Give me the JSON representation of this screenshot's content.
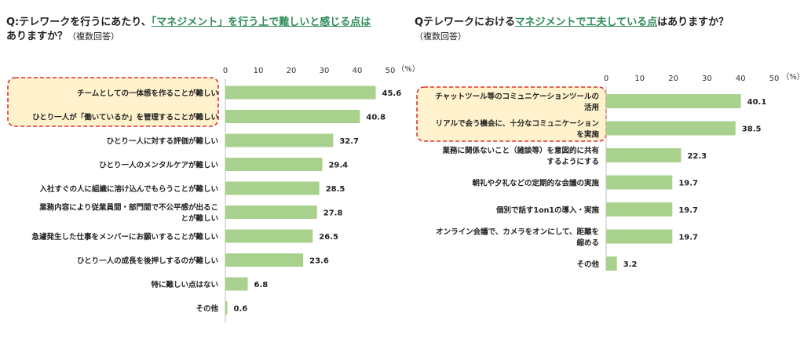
{
  "left_title": {
    "q": "Q:テレワークを行うにあたり、",
    "hl": "「マネジメント」を行う上で難しいと感じる点は",
    "line2": "ありますか？",
    "note": "（複数回答）"
  },
  "right_title": {
    "q": "Qテレワークにおける",
    "hl": "マネジメントで工夫している点",
    "rest": "はありますか？",
    "note": "（複数回答）"
  },
  "colors": {
    "bar": "#a9d18e",
    "highlight_bg": "#fff2cc",
    "highlight_border": "#e03030",
    "accent": "#2e8b57"
  },
  "chart_data": [
    {
      "type": "bar",
      "orientation": "horizontal",
      "unit": "（%）",
      "xlim": [
        0,
        50
      ],
      "ticks": [
        "0",
        "10",
        "20",
        "30",
        "40",
        "50"
      ],
      "categories": [
        "チームとしての一体感を作ることが難しい",
        "ひとり一人が「働いているか」を管理することが難しい",
        "ひとり一人に対する評価が難しい",
        "ひとり一人のメンタルケアが難しい",
        "入社すぐの人に組織に溶け込んでもらうことが難しい",
        "業務内容により従業員間・部門間で不公平感が出るこ|とが難しい",
        "急遽発生した仕事をメンバーにお願いすることが難しい",
        "ひとり一人の成長を後押しするのが難しい",
        "特に難しい点はない",
        "その他"
      ],
      "values": [
        45.6,
        40.8,
        32.7,
        29.4,
        28.5,
        27.8,
        26.5,
        23.6,
        6.8,
        0.6
      ],
      "value_labels": [
        "45.6",
        "40.8",
        "32.7",
        "29.4",
        "28.5",
        "27.8",
        "26.5",
        "23.6",
        "6.8",
        "0.6"
      ],
      "highlighted": [
        0,
        1
      ]
    },
    {
      "type": "bar",
      "orientation": "horizontal",
      "unit": "（%）",
      "xlim": [
        0,
        50
      ],
      "ticks": [
        "0",
        "10",
        "20",
        "30",
        "40",
        "50"
      ],
      "categories": [
        "チャットツール等のコミュニケーションツールの|活用",
        "リアルで会う機会に、十分なコミュニケーション|を実施",
        "業務に関係ないこと（雑談等）を意図的に共有|するようにする",
        "朝礼や夕礼などの定期的な会議の実施",
        "個別で話す1on1の導入・実施",
        "オンライン会議で、カメラをオンにして、距離を|縮める",
        "その他"
      ],
      "values": [
        40.1,
        38.5,
        22.3,
        19.7,
        19.7,
        19.7,
        3.2
      ],
      "value_labels": [
        "40.1",
        "38.5",
        "22.3",
        "19.7",
        "19.7",
        "19.7",
        "3.2"
      ],
      "highlighted": [
        0,
        1
      ]
    }
  ]
}
